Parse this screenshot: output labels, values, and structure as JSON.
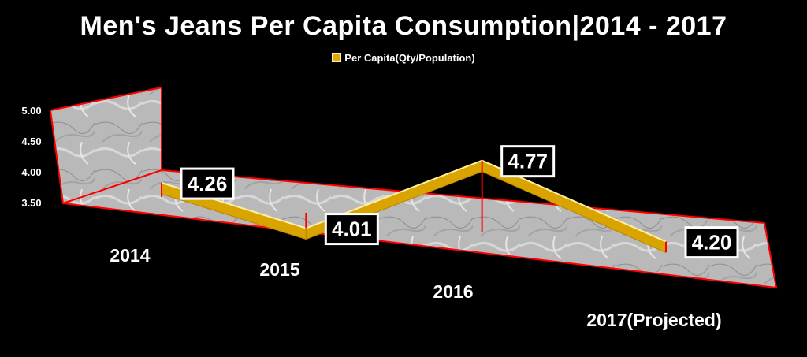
{
  "chart_data": {
    "type": "line",
    "title": "Men's Jeans Per Capita Consumption|2014 - 2017",
    "series": [
      {
        "name": "Per Capita(Qty/Population)",
        "values": [
          4.26,
          4.01,
          4.77,
          4.2
        ],
        "color": "#d9a400"
      }
    ],
    "categories": [
      "2014",
      "2015",
      "2016",
      "2017(Projected)"
    ],
    "data_labels": [
      "4.26",
      "4.01",
      "4.77",
      "4.20"
    ],
    "y_ticks": [
      "5.00",
      "4.50",
      "4.00",
      "3.50"
    ],
    "ylim": [
      3.5,
      5.0
    ],
    "xlabel": "",
    "ylabel": "",
    "legend_position": "top",
    "grid": false,
    "colors": {
      "accent": "#d9a400",
      "accent_light": "#f2c23a",
      "drop_line": "#ff0000",
      "label_bg": "#000000",
      "label_border": "#ffffff"
    }
  }
}
